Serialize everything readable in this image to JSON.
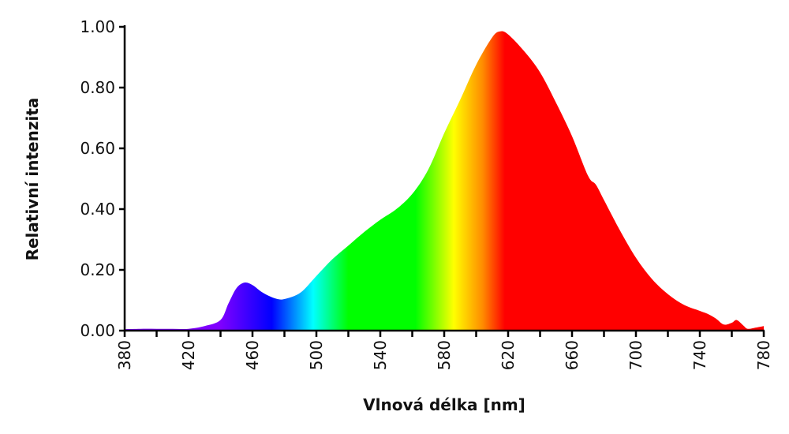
{
  "chart_data": {
    "type": "area",
    "xlabel": "Vlnová délka [nm]",
    "ylabel": "Relativní intenzita",
    "xlim": [
      380,
      780
    ],
    "ylim": [
      0,
      1
    ],
    "x_ticks": [
      "380",
      "420",
      "460",
      "500",
      "540",
      "580",
      "620",
      "660",
      "700",
      "740",
      "780"
    ],
    "x_minor_step": 20,
    "y_ticks": [
      "0.00",
      "0.20",
      "0.40",
      "0.60",
      "0.80",
      "1.00"
    ],
    "grid": false,
    "x": [
      380,
      390,
      400,
      410,
      420,
      430,
      440,
      445,
      450,
      455,
      460,
      465,
      470,
      475,
      480,
      490,
      500,
      510,
      520,
      530,
      540,
      550,
      560,
      570,
      580,
      590,
      600,
      610,
      615,
      620,
      630,
      640,
      650,
      660,
      670,
      675,
      680,
      690,
      700,
      710,
      720,
      730,
      740,
      745,
      750,
      755,
      760,
      763,
      767,
      770,
      775,
      780
    ],
    "y": [
      0.005,
      0.006,
      0.006,
      0.006,
      0.006,
      0.015,
      0.035,
      0.09,
      0.14,
      0.158,
      0.15,
      0.13,
      0.115,
      0.105,
      0.104,
      0.125,
      0.18,
      0.235,
      0.28,
      0.325,
      0.365,
      0.4,
      0.45,
      0.53,
      0.65,
      0.76,
      0.875,
      0.965,
      0.985,
      0.975,
      0.92,
      0.85,
      0.75,
      0.64,
      0.51,
      0.48,
      0.43,
      0.33,
      0.24,
      0.17,
      0.12,
      0.085,
      0.065,
      0.055,
      0.04,
      0.02,
      0.026,
      0.035,
      0.018,
      0.006,
      0.01,
      0.015
    ],
    "fill_gradient": [
      {
        "nm": 380,
        "color": "#7f00ff"
      },
      {
        "nm": 440,
        "color": "#7f00ff"
      },
      {
        "nm": 472,
        "color": "#0000ff"
      },
      {
        "nm": 498,
        "color": "#00ffff"
      },
      {
        "nm": 520,
        "color": "#00ff00"
      },
      {
        "nm": 562,
        "color": "#00ff00"
      },
      {
        "nm": 586,
        "color": "#ffff00"
      },
      {
        "nm": 604,
        "color": "#ff8c00"
      },
      {
        "nm": 618,
        "color": "#ff0000"
      },
      {
        "nm": 780,
        "color": "#ff0000"
      }
    ]
  }
}
